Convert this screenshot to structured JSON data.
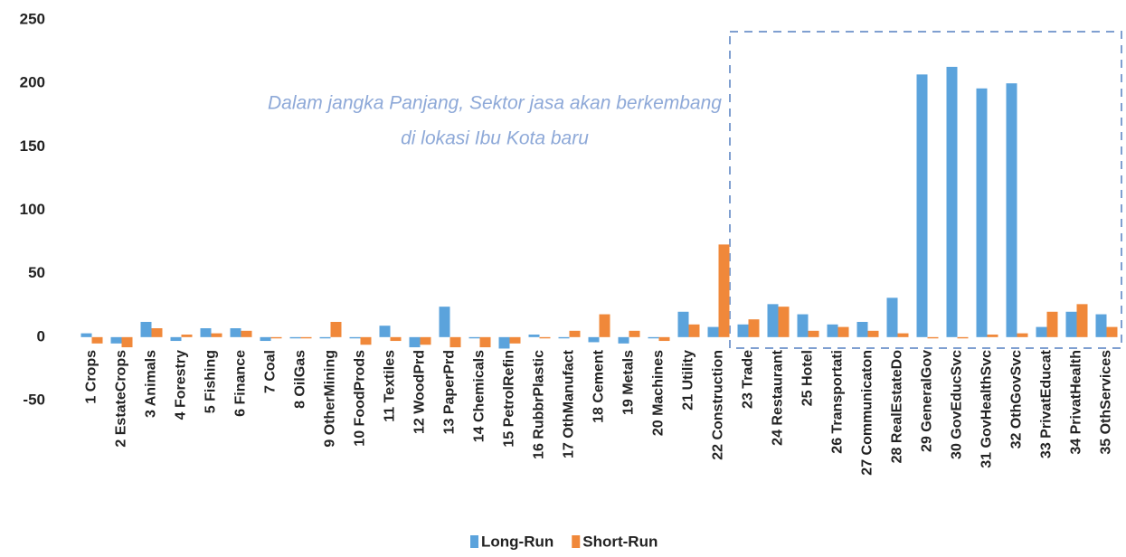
{
  "chart_data": {
    "type": "bar",
    "annotation": [
      "Dalam jangka Panjang, Sektor jasa akan berkembang",
      "di lokasi Ibu Kota baru"
    ],
    "categories": [
      "1 Crops",
      "2 EstateCrops",
      "3 Animals",
      "4 Forestry",
      "5 Fishing",
      "6 Finance",
      "7 Coal",
      "8 OilGas",
      "9 OtherMining",
      "10 FoodProds",
      "11 Textiles",
      "12 WoodPrd",
      "13 PaperPrd",
      "14 Chemicals",
      "15 PetrolRefin",
      "16 RubbrPlastic",
      "17 OthManufact",
      "18 Cement",
      "19 Metals",
      "20 Machines",
      "21 Utility",
      "22 Construction",
      "23 Trade",
      "24 Restaurant",
      "25 Hotel",
      "26 Transportati",
      "27 Communicaton",
      "28 RealEstateDo",
      "29 GeneralGov",
      "30 GovEducSvc",
      "31 GovHealthSvc",
      "32 OthGovSvc",
      "33 PrivatEducat",
      "34 PrivatHealth",
      "35 OthServices"
    ],
    "series": [
      {
        "name": "Long-Run",
        "color": "#5ba3dc",
        "values": [
          3,
          -5,
          12,
          -3,
          7,
          7,
          -3,
          -1,
          -1,
          -1,
          9,
          -8,
          24,
          -1,
          -9,
          2,
          -1,
          -4,
          -5,
          -1,
          20,
          8,
          10,
          26,
          18,
          10,
          12,
          31,
          207,
          213,
          196,
          200,
          8,
          20,
          18
        ]
      },
      {
        "name": "Short-Run",
        "color": "#f0883a",
        "values": [
          -5,
          -8,
          7,
          2,
          3,
          5,
          -1,
          -1,
          12,
          -6,
          -3,
          -6,
          -8,
          -8,
          -5,
          -1,
          5,
          18,
          5,
          -3,
          10,
          73,
          14,
          24,
          5,
          8,
          5,
          3,
          -1,
          -1,
          2,
          3,
          20,
          26,
          8
        ]
      }
    ],
    "ylim": [
      -50,
      250
    ],
    "yticks": [
      -50,
      0,
      50,
      100,
      150,
      200,
      250
    ],
    "legend": "bottom"
  }
}
